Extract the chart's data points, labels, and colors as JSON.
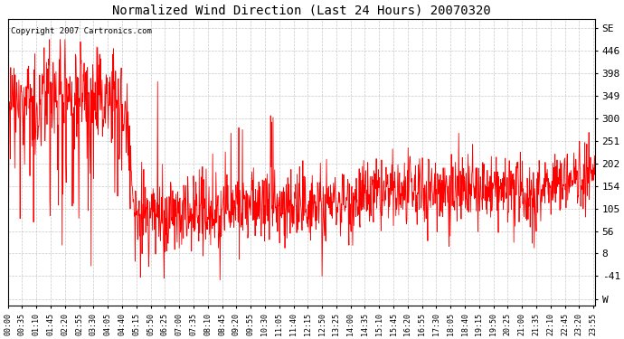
{
  "title": "Normalized Wind Direction (Last 24 Hours) 20070320",
  "copyright": "Copyright 2007 Cartronics.com",
  "line_color": "#ff0000",
  "bg_color": "#ffffff",
  "plot_bg_color": "#ffffff",
  "grid_color": "#bbbbbb",
  "ytick_labels": [
    "SE",
    "446",
    "398",
    "349",
    "300",
    "251",
    "202",
    "154",
    "105",
    "56",
    "8",
    "-41",
    "W"
  ],
  "ytick_values": [
    495,
    446,
    398,
    349,
    300,
    251,
    202,
    154,
    105,
    56,
    8,
    -41,
    -90
  ],
  "ylim": [
    -105,
    515
  ],
  "xtick_labels": [
    "00:00",
    "00:35",
    "01:10",
    "01:45",
    "02:20",
    "02:55",
    "03:30",
    "04:05",
    "04:40",
    "05:15",
    "05:50",
    "06:25",
    "07:00",
    "07:35",
    "08:10",
    "08:45",
    "09:20",
    "09:55",
    "10:30",
    "11:05",
    "11:40",
    "12:15",
    "12:50",
    "13:25",
    "14:00",
    "14:35",
    "15:10",
    "15:45",
    "16:20",
    "16:55",
    "17:30",
    "18:05",
    "18:40",
    "19:15",
    "19:50",
    "20:25",
    "21:00",
    "21:35",
    "22:10",
    "22:45",
    "23:20",
    "23:55"
  ],
  "seed": 42
}
